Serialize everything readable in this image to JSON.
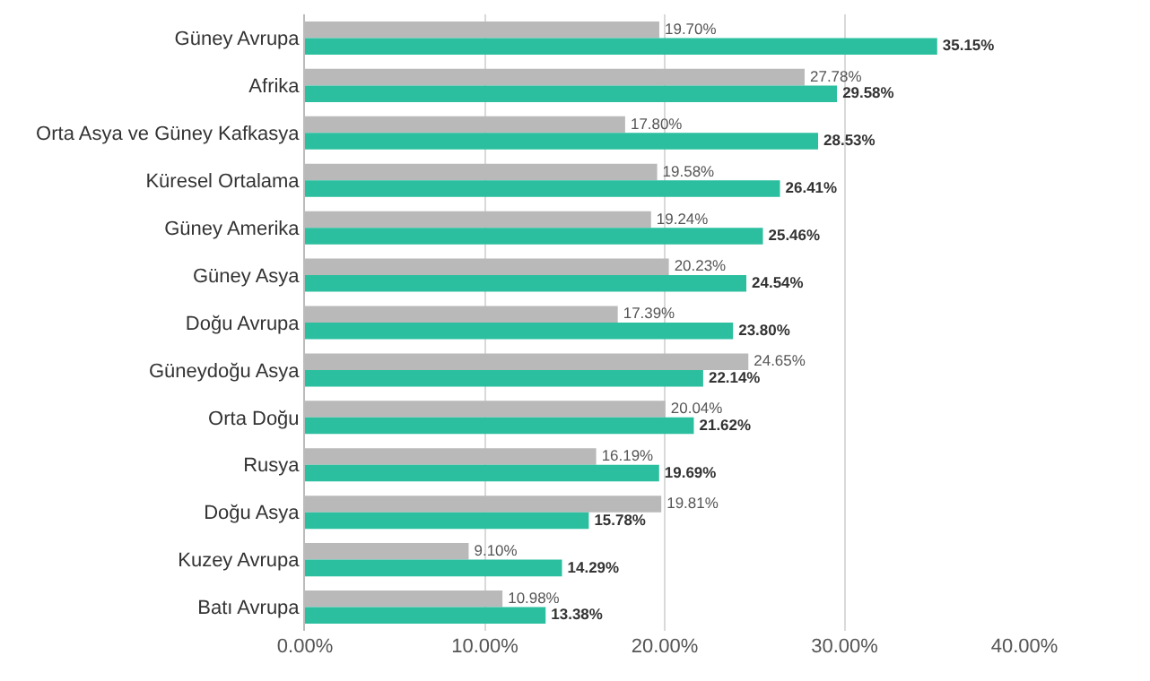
{
  "chart_data": {
    "type": "bar",
    "orientation": "horizontal",
    "categories": [
      "Güney Avrupa",
      "Afrika",
      "Orta Asya ve Güney Kafkasya",
      "Küresel Ortalama",
      "Güney Amerika",
      "Güney Asya",
      "Doğu Avrupa",
      "Güneydoğu Asya",
      "Orta Doğu",
      "Rusya",
      "Doğu Asya",
      "Kuzey Avrupa",
      "Batı Avrupa"
    ],
    "series": [
      {
        "color": "#b9b9b9",
        "values": [
          19.7,
          27.78,
          17.8,
          19.58,
          19.24,
          20.23,
          17.39,
          24.65,
          20.04,
          16.19,
          19.81,
          9.1,
          10.98
        ],
        "value_labels": [
          "19.70%",
          "27.78%",
          "17.80%",
          "19.58%",
          "19.24%",
          "20.23%",
          "17.39%",
          "24.65%",
          "20.04%",
          "16.19%",
          "19.81%",
          "9.10%",
          "10.98%"
        ]
      },
      {
        "color": "#2bbf9f",
        "values": [
          35.15,
          29.58,
          28.53,
          26.41,
          25.46,
          24.54,
          23.8,
          22.14,
          21.62,
          19.69,
          15.78,
          14.29,
          13.38
        ],
        "value_labels": [
          "35.15%",
          "29.58%",
          "28.53%",
          "26.41%",
          "25.46%",
          "24.54%",
          "23.80%",
          "22.14%",
          "21.62%",
          "19.69%",
          "15.78%",
          "14.29%",
          "13.38%"
        ]
      }
    ],
    "xlim": [
      0,
      40
    ],
    "xticks": [
      {
        "value": 0,
        "label": "0.00%"
      },
      {
        "value": 10,
        "label": "10.00%"
      },
      {
        "value": 20,
        "label": "20.00%"
      },
      {
        "value": 30,
        "label": "30.00%"
      },
      {
        "value": 40,
        "label": "40.00%"
      }
    ],
    "grid": "x"
  }
}
